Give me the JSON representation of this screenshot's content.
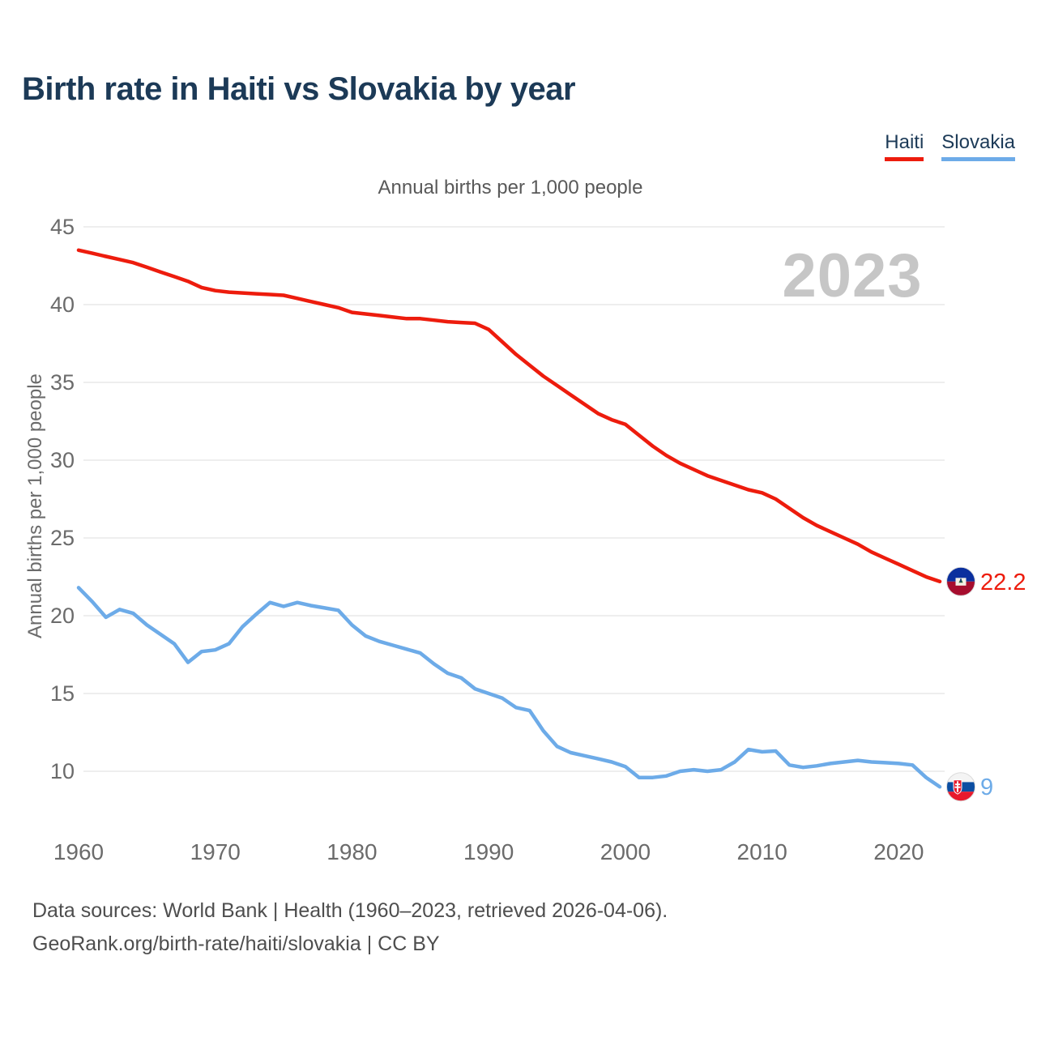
{
  "header": {
    "title": "Birth rate in Haiti vs Slovakia by year"
  },
  "footer": {
    "line1": "Data sources: World Bank | Health (1960–2023, retrieved 2026-04-06).",
    "line2": "GeoRank.org/birth-rate/haiti/slovakia | CC BY"
  },
  "chart_data": {
    "type": "line",
    "title": "Annual births per 1,000 people",
    "ylabel": "Annual births per 1,000 people",
    "watermark_year": "2023",
    "xlim": [
      1960,
      2023
    ],
    "ylim": [
      10,
      45
    ],
    "yticks": [
      10,
      15,
      20,
      25,
      30,
      35,
      40,
      45
    ],
    "xticks": [
      1960,
      1970,
      1980,
      1990,
      2000,
      2010,
      2020
    ],
    "grid": true,
    "legend_position": "top-right",
    "x": [
      1960,
      1961,
      1962,
      1963,
      1964,
      1965,
      1966,
      1967,
      1968,
      1969,
      1970,
      1971,
      1972,
      1973,
      1974,
      1975,
      1976,
      1977,
      1978,
      1979,
      1980,
      1981,
      1982,
      1983,
      1984,
      1985,
      1986,
      1987,
      1988,
      1989,
      1990,
      1991,
      1992,
      1993,
      1994,
      1995,
      1996,
      1997,
      1998,
      1999,
      2000,
      2001,
      2002,
      2003,
      2004,
      2005,
      2006,
      2007,
      2008,
      2009,
      2010,
      2011,
      2012,
      2013,
      2014,
      2015,
      2016,
      2017,
      2018,
      2019,
      2020,
      2021,
      2022,
      2023
    ],
    "series": [
      {
        "name": "Haiti",
        "color": "#ed1c0d",
        "end_label": "22.2",
        "flag": "haiti",
        "values": [
          43.5,
          43.3,
          43.1,
          42.9,
          42.7,
          42.4,
          42.1,
          41.8,
          41.5,
          41.1,
          40.9,
          40.8,
          40.75,
          40.7,
          40.65,
          40.6,
          40.4,
          40.2,
          40.0,
          39.8,
          39.5,
          39.4,
          39.3,
          39.2,
          39.1,
          39.1,
          39.0,
          38.9,
          38.85,
          38.8,
          38.4,
          37.6,
          36.8,
          36.1,
          35.4,
          34.8,
          34.2,
          33.6,
          33.0,
          32.6,
          32.3,
          31.6,
          30.9,
          30.3,
          29.8,
          29.4,
          29.0,
          28.7,
          28.4,
          28.1,
          27.9,
          27.5,
          26.9,
          26.3,
          25.8,
          25.4,
          25.0,
          24.6,
          24.1,
          23.7,
          23.3,
          22.9,
          22.5,
          22.2
        ]
      },
      {
        "name": "Slovakia",
        "color": "#6dabe8",
        "end_label": "9",
        "flag": "slovakia",
        "values": [
          21.8,
          20.9,
          19.9,
          20.4,
          20.15,
          19.4,
          18.8,
          18.2,
          17.0,
          17.7,
          17.8,
          18.2,
          19.3,
          20.1,
          20.85,
          20.6,
          20.85,
          20.65,
          20.5,
          20.35,
          19.4,
          18.7,
          18.35,
          18.1,
          17.85,
          17.6,
          16.9,
          16.3,
          16.0,
          15.3,
          15.0,
          14.7,
          14.1,
          13.9,
          12.6,
          11.6,
          11.2,
          11.0,
          10.8,
          10.6,
          10.3,
          9.6,
          9.6,
          9.7,
          10.0,
          10.1,
          10.0,
          10.1,
          10.6,
          11.4,
          11.25,
          11.3,
          10.4,
          10.25,
          10.35,
          10.5,
          10.6,
          10.7,
          10.6,
          10.55,
          10.5,
          10.4,
          9.6,
          9.0
        ]
      }
    ]
  }
}
